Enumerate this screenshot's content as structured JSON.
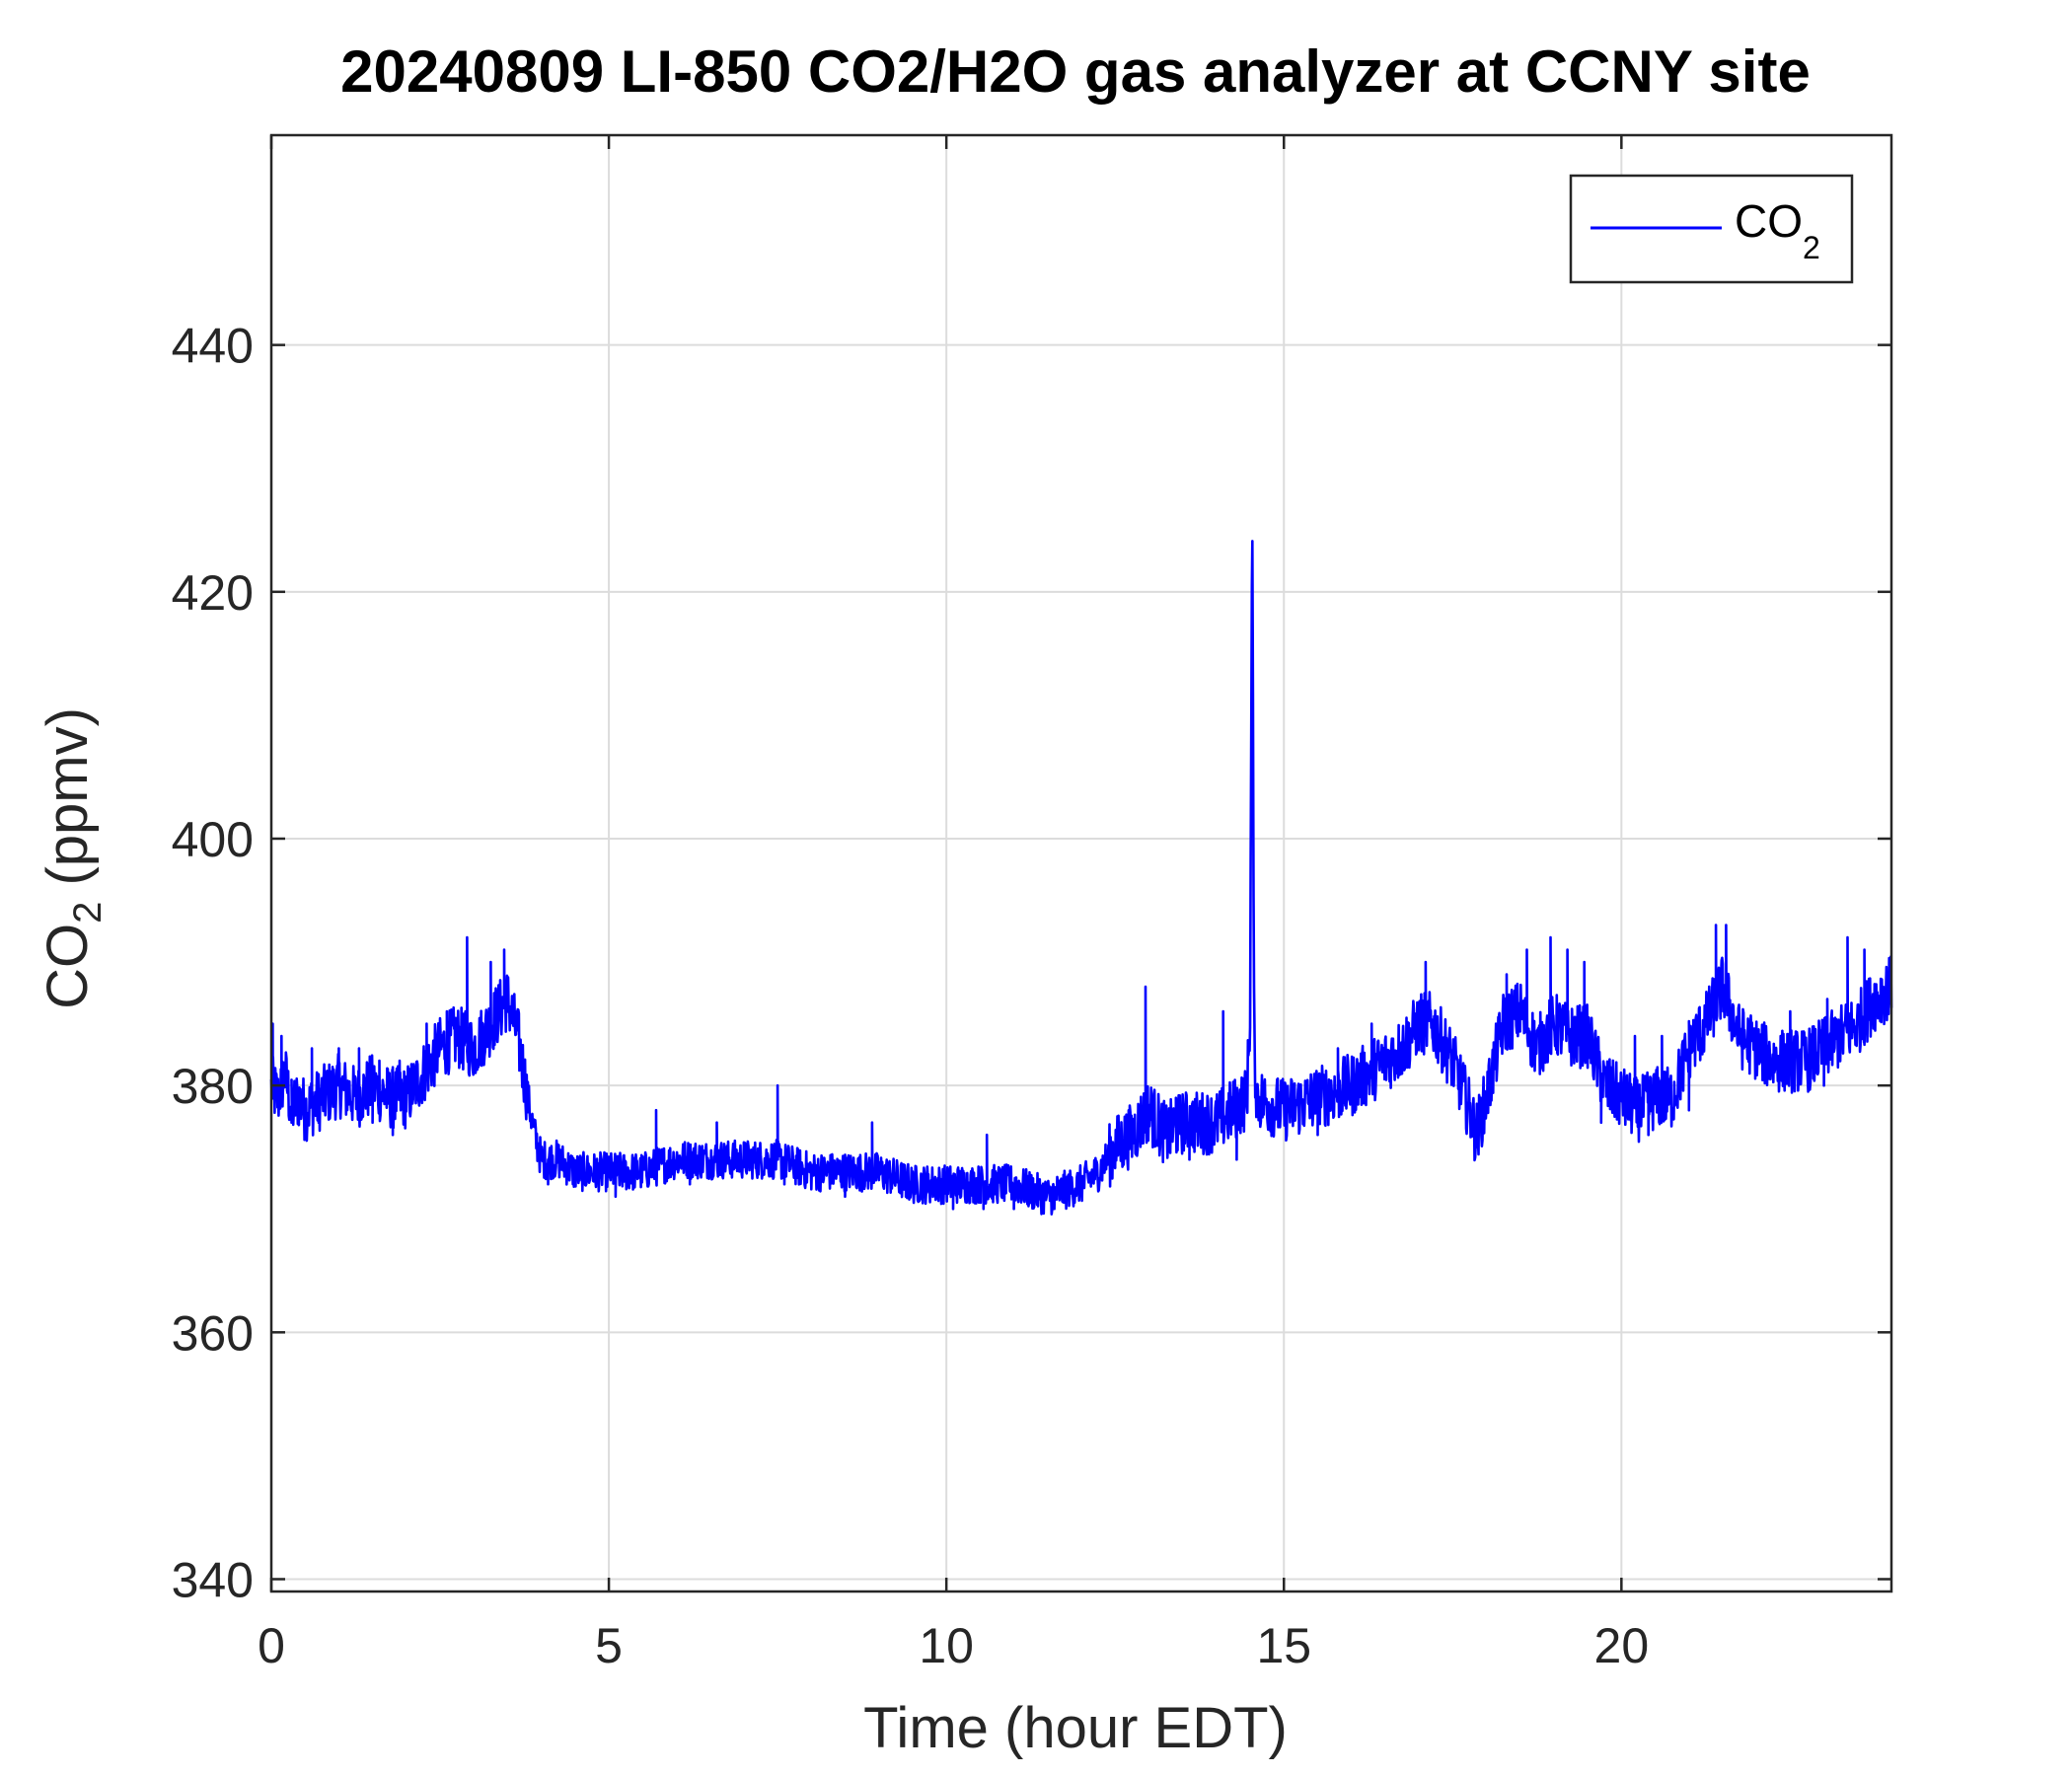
{
  "chart_data": {
    "type": "line",
    "title": "20240809 LI-850 CO2/H2O gas analyzer at CCNY site",
    "xlabel": "Time (hour EDT)",
    "ylabel": {
      "base": "CO",
      "sub": "2",
      "rest": " (ppmv)"
    },
    "xlim": [
      0,
      24
    ],
    "ylim": [
      339,
      457
    ],
    "xticks": [
      0,
      5,
      10,
      15,
      20
    ],
    "yticks": [
      340,
      360,
      380,
      400,
      420,
      440
    ],
    "grid": true,
    "legend": {
      "placement": "top-right",
      "entries": [
        {
          "base": "CO",
          "sub": "2"
        }
      ]
    },
    "series": [
      {
        "name": "CO2",
        "color": "#0000ff",
        "points": [
          [
            0.0,
            380
          ],
          [
            0.1,
            379
          ],
          [
            0.2,
            381
          ],
          [
            0.3,
            378
          ],
          [
            0.4,
            379
          ],
          [
            0.5,
            378
          ],
          [
            0.75,
            379
          ],
          [
            1.0,
            380
          ],
          [
            1.25,
            379
          ],
          [
            1.5,
            380
          ],
          [
            1.75,
            379
          ],
          [
            2.0,
            379
          ],
          [
            2.25,
            381
          ],
          [
            2.5,
            383
          ],
          [
            2.75,
            384
          ],
          [
            3.0,
            383
          ],
          [
            3.25,
            385
          ],
          [
            3.5,
            387
          ],
          [
            3.65,
            384
          ],
          [
            3.8,
            379
          ],
          [
            3.9,
            376
          ],
          [
            4.0,
            374
          ],
          [
            4.25,
            374
          ],
          [
            4.5,
            373
          ],
          [
            5.0,
            373
          ],
          [
            5.5,
            373
          ],
          [
            6.0,
            374
          ],
          [
            6.5,
            374
          ],
          [
            7.0,
            374
          ],
          [
            7.5,
            374
          ],
          [
            8.0,
            373
          ],
          [
            8.5,
            373
          ],
          [
            9.0,
            373
          ],
          [
            9.5,
            372
          ],
          [
            10.0,
            372
          ],
          [
            10.5,
            372
          ],
          [
            11.0,
            372
          ],
          [
            11.5,
            371
          ],
          [
            12.0,
            372
          ],
          [
            12.25,
            373
          ],
          [
            12.5,
            375
          ],
          [
            12.75,
            376
          ],
          [
            13.0,
            378
          ],
          [
            13.25,
            376
          ],
          [
            13.5,
            377
          ],
          [
            13.75,
            377
          ],
          [
            14.0,
            377
          ],
          [
            14.25,
            378
          ],
          [
            14.45,
            379
          ],
          [
            14.5,
            386
          ],
          [
            14.53,
            427
          ],
          [
            14.56,
            383
          ],
          [
            14.6,
            379
          ],
          [
            15.0,
            378
          ],
          [
            15.5,
            379
          ],
          [
            16.0,
            380
          ],
          [
            16.5,
            382
          ],
          [
            16.75,
            383
          ],
          [
            17.0,
            385
          ],
          [
            17.2,
            385
          ],
          [
            17.5,
            382
          ],
          [
            17.75,
            378
          ],
          [
            17.85,
            376
          ],
          [
            18.0,
            379
          ],
          [
            18.25,
            385
          ],
          [
            18.5,
            386
          ],
          [
            18.75,
            383
          ],
          [
            19.0,
            385
          ],
          [
            19.25,
            384
          ],
          [
            19.5,
            384
          ],
          [
            19.75,
            380
          ],
          [
            20.0,
            379
          ],
          [
            20.25,
            378
          ],
          [
            20.5,
            379
          ],
          [
            20.75,
            379
          ],
          [
            21.0,
            383
          ],
          [
            21.25,
            385
          ],
          [
            21.5,
            388
          ],
          [
            21.75,
            384
          ],
          [
            22.0,
            383
          ],
          [
            22.25,
            382
          ],
          [
            22.5,
            382
          ],
          [
            22.75,
            382
          ],
          [
            23.0,
            383
          ],
          [
            23.25,
            384
          ],
          [
            23.5,
            385
          ],
          [
            23.75,
            387
          ],
          [
            24.0,
            388
          ]
        ],
        "spikes": [
          [
            0.02,
            385
          ],
          [
            0.15,
            384
          ],
          [
            0.6,
            383
          ],
          [
            1.0,
            383
          ],
          [
            1.3,
            383
          ],
          [
            1.6,
            382
          ],
          [
            1.9,
            382
          ],
          [
            2.3,
            385
          ],
          [
            2.6,
            386
          ],
          [
            2.9,
            392
          ],
          [
            3.25,
            390
          ],
          [
            3.45,
            391
          ],
          [
            5.7,
            378
          ],
          [
            6.6,
            377
          ],
          [
            7.5,
            380
          ],
          [
            8.9,
            377
          ],
          [
            10.6,
            376
          ],
          [
            12.95,
            388
          ],
          [
            13.4,
            379
          ],
          [
            14.1,
            386
          ],
          [
            15.8,
            383
          ],
          [
            16.3,
            385
          ],
          [
            17.1,
            390
          ],
          [
            18.3,
            389
          ],
          [
            18.6,
            391
          ],
          [
            18.95,
            392
          ],
          [
            19.2,
            391
          ],
          [
            19.45,
            390
          ],
          [
            20.2,
            384
          ],
          [
            20.6,
            384
          ],
          [
            21.4,
            393
          ],
          [
            21.55,
            393
          ],
          [
            22.5,
            386
          ],
          [
            23.05,
            387
          ],
          [
            23.35,
            392
          ],
          [
            23.6,
            391
          ]
        ],
        "dips": [
          [
            0.3,
            377
          ],
          [
            0.7,
            377
          ],
          [
            1.5,
            377
          ],
          [
            1.8,
            376
          ],
          [
            4.1,
            372
          ],
          [
            5.1,
            371
          ],
          [
            6.2,
            372
          ],
          [
            7.6,
            372
          ],
          [
            8.5,
            371
          ],
          [
            9.4,
            371
          ],
          [
            10.1,
            370
          ],
          [
            10.55,
            370
          ],
          [
            11.0,
            370
          ],
          [
            11.6,
            370
          ],
          [
            13.6,
            374
          ],
          [
            14.3,
            374
          ],
          [
            15.5,
            376
          ],
          [
            17.85,
            375
          ],
          [
            19.7,
            377
          ],
          [
            20.4,
            376
          ],
          [
            21.0,
            378
          ],
          [
            23.0,
            380
          ]
        ]
      }
    ]
  }
}
